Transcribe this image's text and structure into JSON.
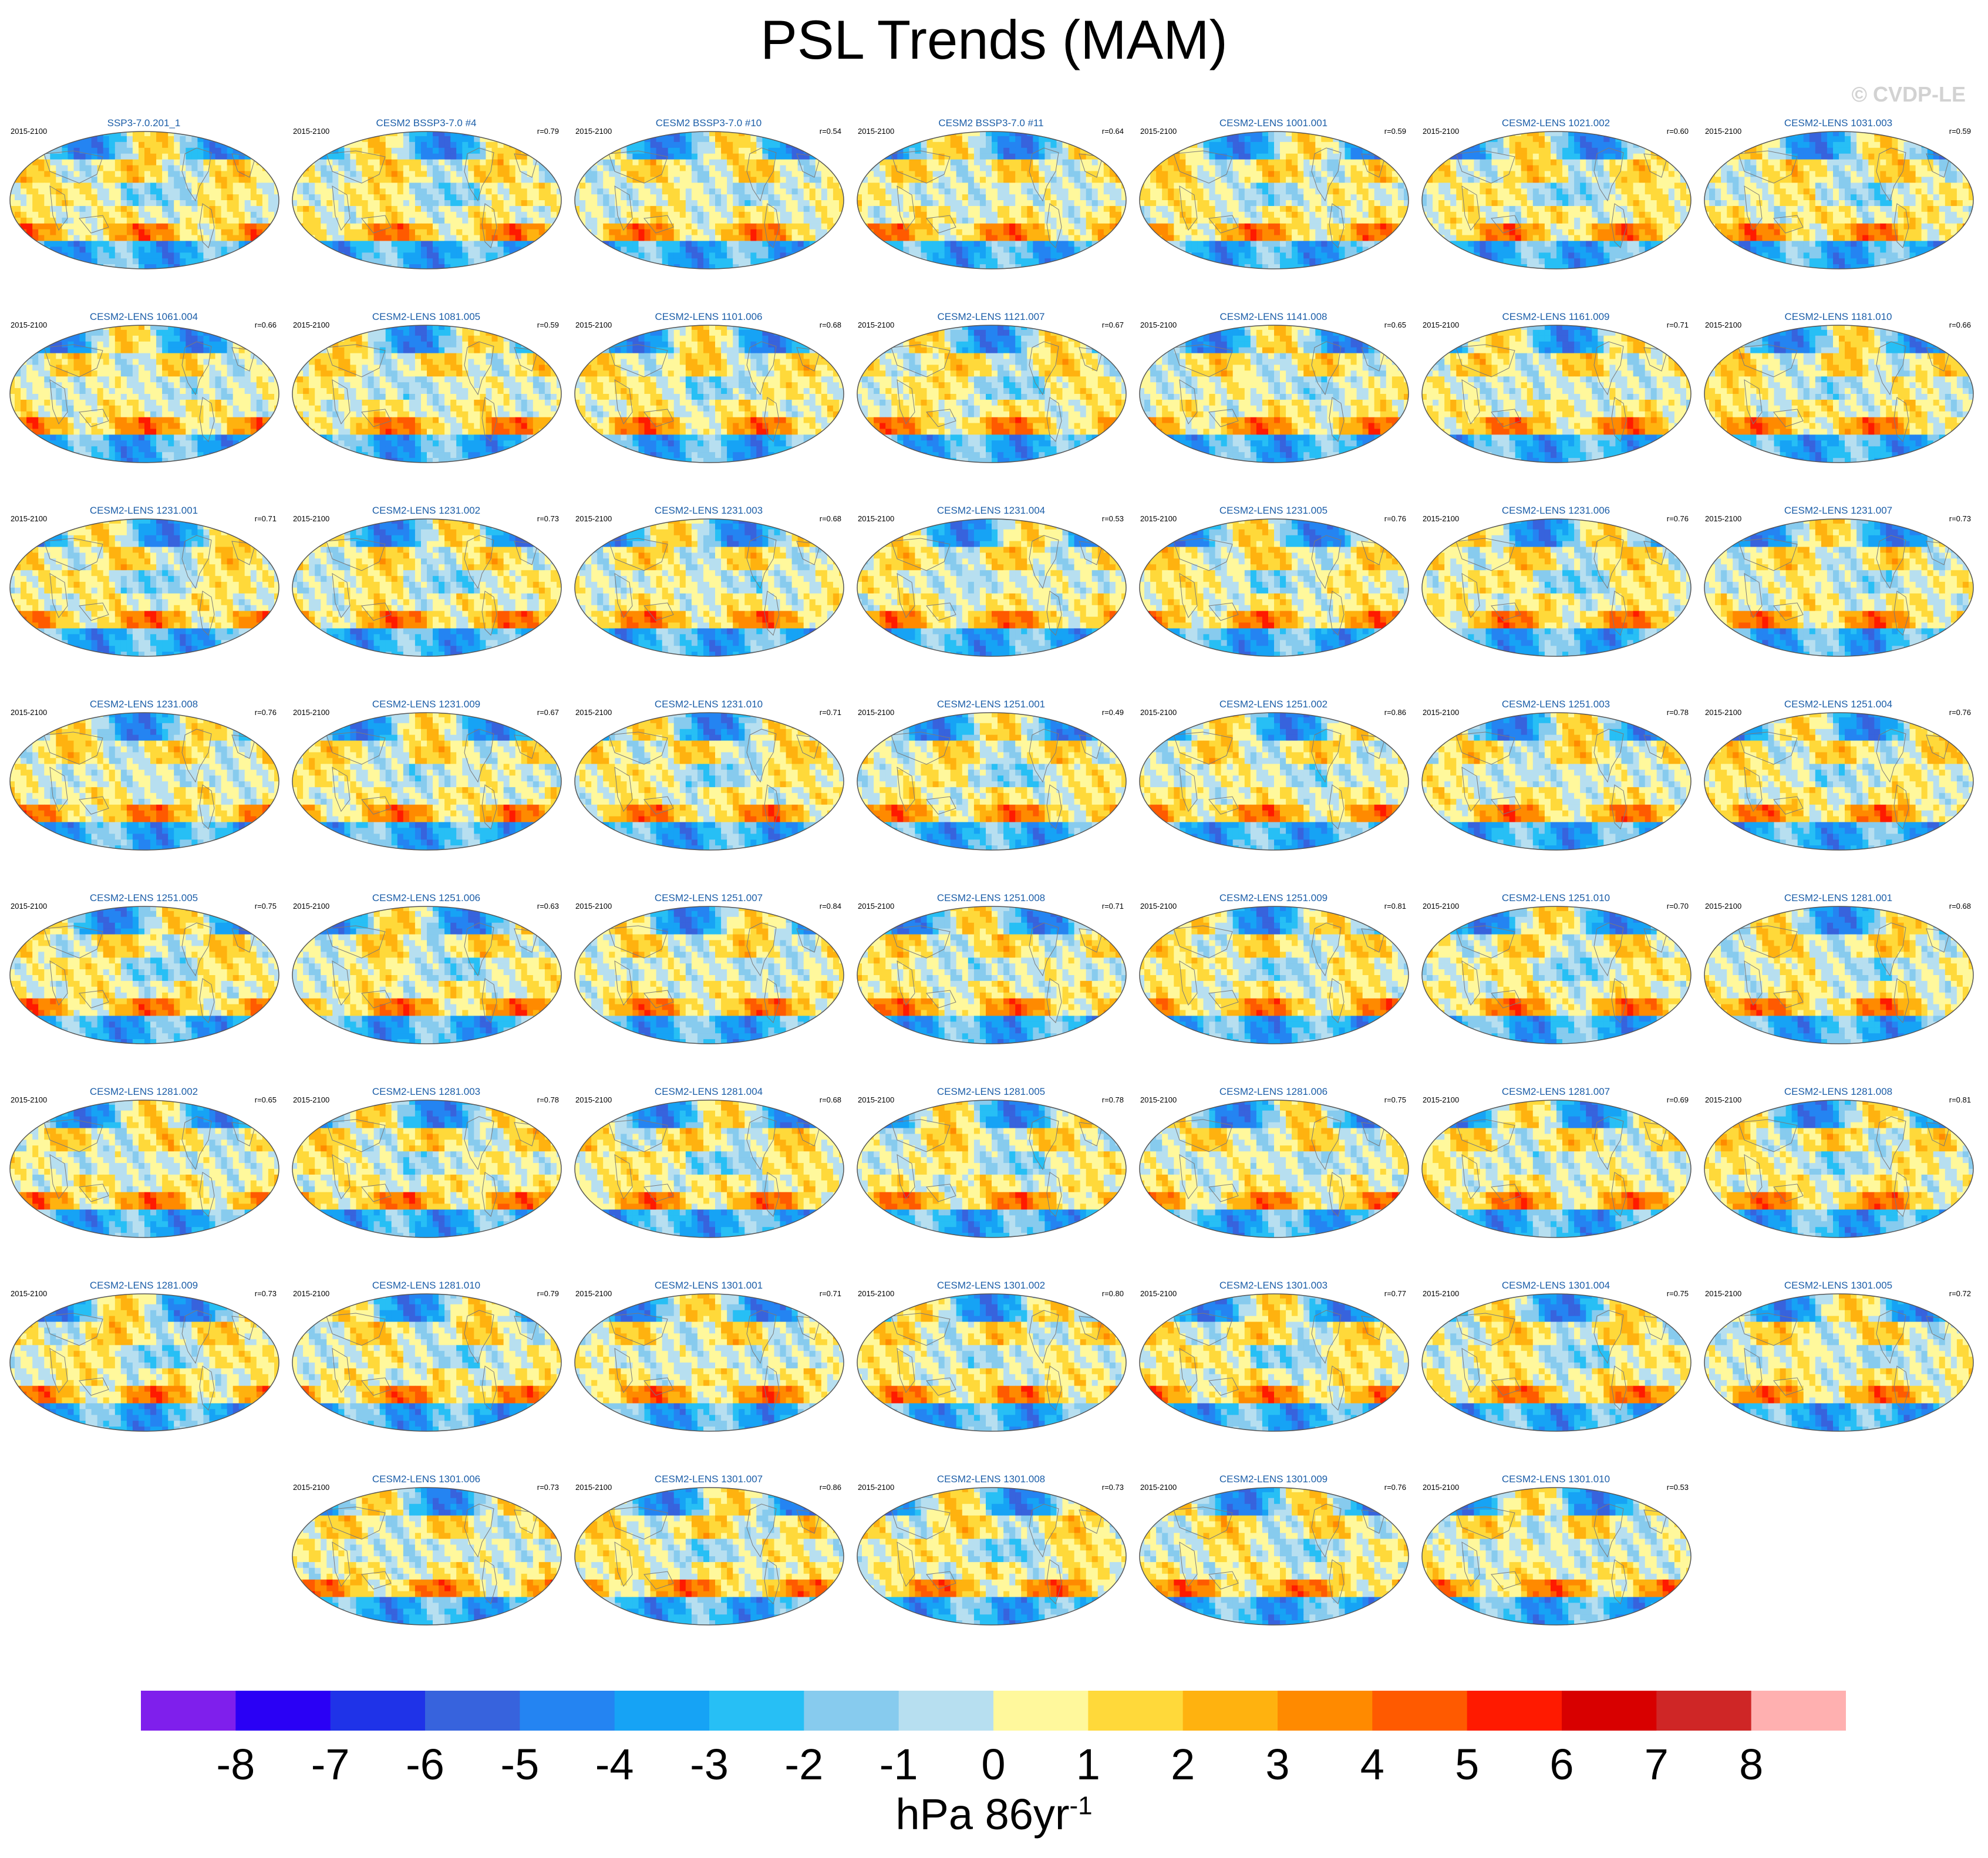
{
  "title": "PSL Trends (MAM)",
  "credit": "© CVDP-LE",
  "period": "2015-2100",
  "panels": [
    {
      "name": "SSP3-7.0.201_1",
      "r": ""
    },
    {
      "name": "CESM2 BSSP3-7.0 #4",
      "r": "r=0.79"
    },
    {
      "name": "CESM2 BSSP3-7.0 #10",
      "r": "r=0.54"
    },
    {
      "name": "CESM2 BSSP3-7.0 #11",
      "r": "r=0.64"
    },
    {
      "name": "CESM2-LENS 1001.001",
      "r": "r=0.59"
    },
    {
      "name": "CESM2-LENS 1021.002",
      "r": "r=0.60"
    },
    {
      "name": "CESM2-LENS 1031.003",
      "r": "r=0.59"
    },
    {
      "name": "CESM2-LENS 1061.004",
      "r": "r=0.66"
    },
    {
      "name": "CESM2-LENS 1081.005",
      "r": "r=0.59"
    },
    {
      "name": "CESM2-LENS 1101.006",
      "r": "r=0.68"
    },
    {
      "name": "CESM2-LENS 1121.007",
      "r": "r=0.67"
    },
    {
      "name": "CESM2-LENS 1141.008",
      "r": "r=0.65"
    },
    {
      "name": "CESM2-LENS 1161.009",
      "r": "r=0.71"
    },
    {
      "name": "CESM2-LENS 1181.010",
      "r": "r=0.66"
    },
    {
      "name": "CESM2-LENS 1231.001",
      "r": "r=0.71"
    },
    {
      "name": "CESM2-LENS 1231.002",
      "r": "r=0.73"
    },
    {
      "name": "CESM2-LENS 1231.003",
      "r": "r=0.68"
    },
    {
      "name": "CESM2-LENS 1231.004",
      "r": "r=0.53"
    },
    {
      "name": "CESM2-LENS 1231.005",
      "r": "r=0.76"
    },
    {
      "name": "CESM2-LENS 1231.006",
      "r": "r=0.76"
    },
    {
      "name": "CESM2-LENS 1231.007",
      "r": "r=0.73"
    },
    {
      "name": "CESM2-LENS 1231.008",
      "r": "r=0.76"
    },
    {
      "name": "CESM2-LENS 1231.009",
      "r": "r=0.67"
    },
    {
      "name": "CESM2-LENS 1231.010",
      "r": "r=0.71"
    },
    {
      "name": "CESM2-LENS 1251.001",
      "r": "r=0.49"
    },
    {
      "name": "CESM2-LENS 1251.002",
      "r": "r=0.86"
    },
    {
      "name": "CESM2-LENS 1251.003",
      "r": "r=0.78"
    },
    {
      "name": "CESM2-LENS 1251.004",
      "r": "r=0.76"
    },
    {
      "name": "CESM2-LENS 1251.005",
      "r": "r=0.75"
    },
    {
      "name": "CESM2-LENS 1251.006",
      "r": "r=0.63"
    },
    {
      "name": "CESM2-LENS 1251.007",
      "r": "r=0.84"
    },
    {
      "name": "CESM2-LENS 1251.008",
      "r": "r=0.71"
    },
    {
      "name": "CESM2-LENS 1251.009",
      "r": "r=0.81"
    },
    {
      "name": "CESM2-LENS 1251.010",
      "r": "r=0.70"
    },
    {
      "name": "CESM2-LENS 1281.001",
      "r": "r=0.68"
    },
    {
      "name": "CESM2-LENS 1281.002",
      "r": "r=0.65"
    },
    {
      "name": "CESM2-LENS 1281.003",
      "r": "r=0.78"
    },
    {
      "name": "CESM2-LENS 1281.004",
      "r": "r=0.68"
    },
    {
      "name": "CESM2-LENS 1281.005",
      "r": "r=0.78"
    },
    {
      "name": "CESM2-LENS 1281.006",
      "r": "r=0.75"
    },
    {
      "name": "CESM2-LENS 1281.007",
      "r": "r=0.69"
    },
    {
      "name": "CESM2-LENS 1281.008",
      "r": "r=0.81"
    },
    {
      "name": "CESM2-LENS 1281.009",
      "r": "r=0.73"
    },
    {
      "name": "CESM2-LENS 1281.010",
      "r": "r=0.79"
    },
    {
      "name": "CESM2-LENS 1301.001",
      "r": "r=0.71"
    },
    {
      "name": "CESM2-LENS 1301.002",
      "r": "r=0.80"
    },
    {
      "name": "CESM2-LENS 1301.003",
      "r": "r=0.77"
    },
    {
      "name": "CESM2-LENS 1301.004",
      "r": "r=0.75"
    },
    {
      "name": "CESM2-LENS 1301.005",
      "r": "r=0.72"
    },
    {
      "name": "CESM2-LENS 1301.006",
      "r": "r=0.73"
    },
    {
      "name": "CESM2-LENS 1301.007",
      "r": "r=0.86"
    },
    {
      "name": "CESM2-LENS 1301.008",
      "r": "r=0.73"
    },
    {
      "name": "CESM2-LENS 1301.009",
      "r": "r=0.76"
    },
    {
      "name": "CESM2-LENS 1301.010",
      "r": "r=0.53"
    }
  ],
  "colorbar": {
    "colors": [
      "#7f1fec",
      "#2a00f5",
      "#1f33e8",
      "#3763dd",
      "#2484f2",
      "#16a3f5",
      "#27bff5",
      "#87cbee",
      "#b7dff0",
      "#fff89c",
      "#ffd93a",
      "#ffb20f",
      "#ff8a00",
      "#ff5a00",
      "#ff1a00",
      "#d80000",
      "#cf2626",
      "#ffb0b0"
    ],
    "labels": [
      "-8",
      "-7",
      "-6",
      "-5",
      "-4",
      "-3",
      "-2",
      "-1",
      "0",
      "1",
      "2",
      "3",
      "4",
      "5",
      "6",
      "7",
      "8"
    ],
    "units": "hPa 86yr",
    "units_exp": "-1"
  }
}
